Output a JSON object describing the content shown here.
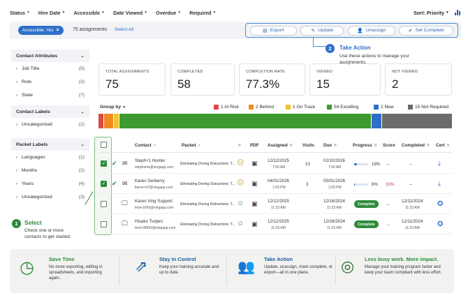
{
  "filters": [
    "Status",
    "Hire Date",
    "Accessible",
    "Date Viewed",
    "Overdue",
    "Required"
  ],
  "sort_label": "Sort: Priority",
  "active_chip": "Accessible: Yes",
  "assignment_count": "75 assignments",
  "select_all": "Select All",
  "actions": [
    {
      "label": "Export",
      "icon": "export-icon"
    },
    {
      "label": "Update",
      "icon": "pencil-icon"
    },
    {
      "label": "Unassign",
      "icon": "user-minus-icon"
    },
    {
      "label": "Set Complete",
      "icon": "check-circle-icon"
    }
  ],
  "take_action": {
    "num": "2",
    "title": "Take Action",
    "desc": "Use these actions to manage your assignments."
  },
  "select_callout": {
    "num": "1",
    "title": "Select",
    "desc": "Check one or more contacts to get started."
  },
  "sidebar": {
    "sections": [
      {
        "title": "Contact Attributes",
        "items": [
          {
            "label": "Job Title",
            "count": "(5)"
          },
          {
            "label": "Role",
            "count": "(2)"
          },
          {
            "label": "State",
            "count": "(7)"
          }
        ]
      },
      {
        "title": "Contact Labels",
        "items": [
          {
            "label": "Uncategorized",
            "count": "(2)"
          }
        ]
      },
      {
        "title": "Packet Labels",
        "items": [
          {
            "label": "Languages",
            "count": "(1)"
          },
          {
            "label": "Months",
            "count": "(2)"
          },
          {
            "label": "Years",
            "count": "(4)"
          },
          {
            "label": "Uncategorized",
            "count": "(3)"
          }
        ]
      }
    ]
  },
  "stats": [
    {
      "label": "TOTAL ASSIGNMENTS",
      "value": "75"
    },
    {
      "label": "COMPLETED",
      "value": "58"
    },
    {
      "label": "COMPLETION RATE",
      "value": "77.3%"
    },
    {
      "label": "VIEWED",
      "value": "15"
    },
    {
      "label": "NOT VIEWED",
      "value": "2"
    }
  ],
  "group_by": "Group by",
  "legend": [
    {
      "label": "1 At Risk",
      "color": "#e04848"
    },
    {
      "label": "2 Behind",
      "color": "#f08a24"
    },
    {
      "label": "1 On Track",
      "color": "#f2c12e"
    },
    {
      "label": "54 Excelling",
      "color": "#3c9a2e"
    },
    {
      "label": "2 New",
      "color": "#2f6fc9"
    },
    {
      "label": "15 Not Required",
      "color": "#6b6b6b"
    }
  ],
  "segments": [
    {
      "value": 1,
      "color": "#e04848"
    },
    {
      "value": 2,
      "color": "#f08a24"
    },
    {
      "value": 1,
      "color": "#f2c12e"
    },
    {
      "value": 54,
      "color": "#3c9a2e"
    },
    {
      "value": 2,
      "color": "#2f6fc9"
    },
    {
      "value": 15,
      "color": "#6b6b6b"
    }
  ],
  "columns": [
    "Contact",
    "Packet",
    "PDF",
    "Assigned",
    "Visits",
    "Due",
    "Progress",
    "Score",
    "Completed",
    "Cert"
  ],
  "rows": [
    {
      "checked": true,
      "verified": true,
      "email_icon": "envelope-icon",
      "name": "Steph+1 Hunter",
      "email": "stephanie@vingapp.com",
      "packet": "Eliminating Driving Distractions: T...",
      "face": "neutral",
      "assigned_date": "12/12/2025",
      "assigned_time": "7:00 AM",
      "visits": "10",
      "due_date": "02/10/2026",
      "due_time": "7:00 AM",
      "progress": 18,
      "progress_text": "18%",
      "score": "--",
      "completed": "--",
      "cert": "download-icon"
    },
    {
      "checked": true,
      "verified": true,
      "email_icon": "envelope-icon",
      "name": "Karen Gerberry",
      "email": "karen+47@vingapp.com",
      "packet": "Eliminating Driving Distractions: T...",
      "face": "neutral",
      "assigned_date": "04/01/2026",
      "assigned_time": "1:00 PM",
      "visits": "3",
      "due_date": "05/01/2026",
      "due_time": "1:00 PM",
      "progress": 6,
      "progress_text": "6%",
      "score": "33%",
      "completed": "--",
      "cert": "download-icon"
    },
    {
      "checked": false,
      "verified": false,
      "email_icon": "monitor-icon",
      "name": "Karen Ving Support",
      "email": "test+1660@vingapp.com",
      "packet": "Eliminating Driving Distractions: T...",
      "face": "happy",
      "assigned_date": "12/12/2025",
      "assigned_time": "11:23 AM",
      "visits": "",
      "due_date": "12/16/2024",
      "due_time": "11:23 AM",
      "progress_pill": "Complete",
      "score": "--",
      "completed": "12/11/2024",
      "completed_time": "11:23 AM",
      "cert": "award-icon"
    },
    {
      "checked": false,
      "verified": false,
      "email_icon": "monitor-icon",
      "name": "Hisako Turpen",
      "email": "test+28092@vingapp.com",
      "packet": "Eliminating Driving Distractions: T...",
      "face": "happy",
      "assigned_date": "12/12/2025",
      "assigned_time": "11:23 AM",
      "visits": "",
      "due_date": "12/16/2024",
      "due_time": "11:23 AM",
      "progress_pill": "Complete",
      "score": "--",
      "completed": "12/11/2024",
      "completed_time": "11:23 AM",
      "cert": "award-icon"
    }
  ],
  "features": [
    {
      "title": "Save Time",
      "desc": "No more exporting, editing in spreadsheets, and importing again.",
      "icon": "clock-icon"
    },
    {
      "title": "Stay In Control",
      "desc": "Keep your training accurate and up to date.",
      "icon": "external-arrow-icon"
    },
    {
      "title": "Take Action",
      "desc": "Update, unassign, mark complete, or export—all in one place.",
      "icon": "people-icon"
    },
    {
      "title": "Less busy work. More impact.",
      "desc": "Manage your training program faster and keep your team compliant with less effort.",
      "icon": "target-icon"
    }
  ],
  "colors": {
    "accent_blue": "#2f6fc9",
    "accent_green": "#2e8b3a",
    "score_red": "#d33b3b"
  }
}
